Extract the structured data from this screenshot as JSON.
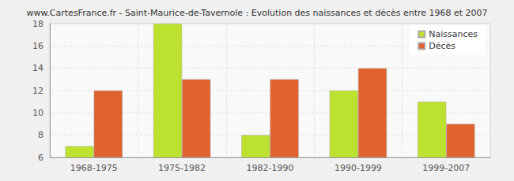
{
  "chart_data": {
    "type": "bar",
    "title": "www.CartesFrance.fr - Saint-Maurice-de-Tavernole : Evolution des naissances et décès entre 1968 et 2007",
    "categories": [
      "1968-1975",
      "1975-1982",
      "1982-1990",
      "1990-1999",
      "1999-2007"
    ],
    "series": [
      {
        "name": "Naissances",
        "color": "#bde12f",
        "values": [
          7,
          18,
          8,
          12,
          11
        ]
      },
      {
        "name": "Décès",
        "color": "#e0632f",
        "values": [
          12,
          13,
          13,
          14,
          9
        ]
      }
    ],
    "ylim": [
      6,
      18
    ],
    "yticks": [
      6,
      8,
      10,
      12,
      14,
      16,
      18
    ],
    "grid": true,
    "legend": "top-right"
  }
}
